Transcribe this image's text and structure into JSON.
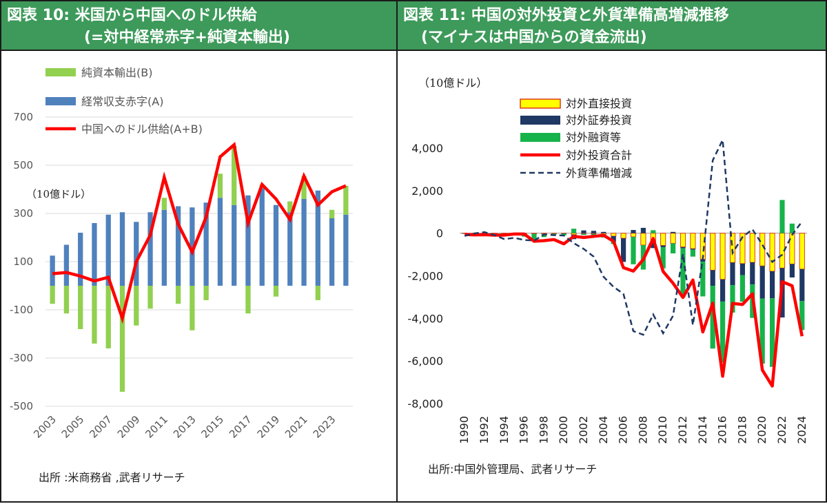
{
  "left": {
    "header": {
      "line1": "図表 10: 米国から中国へのドル供給",
      "line2": "(=対中経常赤字+純資本輸出)"
    },
    "source": "出所 :米商務省 ,武者リサーチ",
    "chart_data": {
      "type": "bar",
      "unit_label": "（10億ドル）",
      "ylim": [
        -500,
        700
      ],
      "yticks": [
        700,
        500,
        300,
        100,
        -100,
        -300,
        -500
      ],
      "ytick_labels": [
        "700",
        "500",
        "300",
        "100",
        "-100",
        "-300",
        "-500"
      ],
      "x": [
        2003,
        2004,
        2005,
        2006,
        2007,
        2008,
        2009,
        2010,
        2011,
        2012,
        2013,
        2014,
        2015,
        2016,
        2017,
        2018,
        2019,
        2020,
        2021,
        2022,
        2023,
        2024
      ],
      "xtick_labels": [
        "2003",
        "2005",
        "2007",
        "2009",
        "2011",
        "2013",
        "2015",
        "2017",
        "2019",
        "2021",
        "2023"
      ],
      "legend_position": "top-left",
      "colors": {
        "capital": "#92d050",
        "deficit": "#4f81bd",
        "supply": "#ff0000",
        "grid": "#d9d9d9"
      },
      "series": [
        {
          "name": "純資本輸出(B)",
          "type": "bar",
          "values": [
            -75,
            -115,
            -180,
            -240,
            -260,
            -440,
            -165,
            -95,
            50,
            -75,
            -185,
            -60,
            100,
            245,
            -115,
            15,
            -45,
            45,
            95,
            -60,
            35,
            120
          ]
        },
        {
          "name": "経常収支赤字(A)",
          "type": "bar",
          "values": [
            125,
            170,
            220,
            260,
            295,
            305,
            265,
            305,
            315,
            330,
            325,
            345,
            365,
            335,
            375,
            405,
            335,
            305,
            360,
            395,
            280,
            295
          ]
        },
        {
          "name": "中国へのドル供給(A+B)",
          "type": "line",
          "values": [
            50,
            55,
            40,
            20,
            35,
            -135,
            100,
            210,
            450,
            255,
            140,
            285,
            535,
            585,
            260,
            420,
            360,
            275,
            455,
            335,
            390,
            415
          ]
        }
      ]
    }
  },
  "right": {
    "header": {
      "line1": "図表 11: 中国の対外投資と外貨準備高増減推移",
      "line2": "(マイナスは中国からの資金流出)"
    },
    "source": "出所:中国外管理局、武者リサーチ",
    "chart_data": {
      "type": "bar",
      "unit_label": "（10億ドル）",
      "ylim": [
        -8000,
        4000
      ],
      "yticks": [
        4000,
        2000,
        0,
        -2000,
        -4000,
        -6000,
        -8000
      ],
      "ytick_labels": [
        "4,000",
        "2,000",
        "0",
        "-2,000",
        "-4,000",
        "-6,000",
        "-8,000"
      ],
      "x": [
        1990,
        1991,
        1992,
        1993,
        1994,
        1995,
        1996,
        1997,
        1998,
        1999,
        2000,
        2001,
        2002,
        2003,
        2004,
        2005,
        2006,
        2007,
        2008,
        2009,
        2010,
        2011,
        2012,
        2013,
        2014,
        2015,
        2016,
        2017,
        2018,
        2019,
        2020,
        2021,
        2022,
        2023,
        2024
      ],
      "xtick_labels": [
        "1990",
        "1992",
        "1994",
        "1996",
        "1998",
        "2000",
        "2002",
        "2004",
        "2006",
        "2008",
        "2010",
        "2012",
        "2014",
        "2016",
        "2018",
        "2020",
        "2022",
        "2024"
      ],
      "legend_position": "top-center",
      "colors": {
        "fdi_fill": "#ffff00",
        "fdi_edge": "#e0391f",
        "portfolio": "#1f3864",
        "loans": "#16b34a",
        "total": "#ff0000",
        "reserves": "#1f3864"
      },
      "series": [
        {
          "name": "対外直接投資",
          "type": "bar",
          "values": [
            -10,
            -10,
            -40,
            -40,
            -20,
            -20,
            -20,
            -25,
            -25,
            -20,
            -10,
            -70,
            -25,
            -30,
            -55,
            -140,
            -240,
            -170,
            -560,
            -440,
            -580,
            -480,
            -650,
            -730,
            -1230,
            -1740,
            -2170,
            -1380,
            -1430,
            -1370,
            -1540,
            -1790,
            -1640,
            -1450,
            -1690
          ]
        },
        {
          "name": "対外証券投資",
          "type": "bar",
          "values": [
            0,
            0,
            0,
            0,
            0,
            0,
            0,
            0,
            0,
            0,
            -10,
            -210,
            130,
            110,
            60,
            -260,
            -1110,
            150,
            250,
            -260,
            -80,
            60,
            -60,
            -50,
            -110,
            -730,
            -1040,
            -1060,
            -540,
            -1040,
            -1530,
            -1270,
            -2320,
            -630,
            -1500
          ]
        },
        {
          "name": "対外融資等",
          "type": "bar",
          "values": [
            -20,
            -20,
            -30,
            -30,
            -40,
            -20,
            -140,
            -270,
            -160,
            -50,
            -80,
            210,
            -60,
            -80,
            -150,
            -110,
            0,
            -1290,
            -1150,
            140,
            -990,
            -470,
            -2300,
            -320,
            -1630,
            -2950,
            -2870,
            -1290,
            -1250,
            -1570,
            -3060,
            -3220,
            1560,
            450,
            -1360
          ]
        },
        {
          "name": "対外投資合計",
          "type": "line",
          "values": [
            -60,
            -80,
            -70,
            -90,
            -90,
            -40,
            -40,
            -380,
            -350,
            -300,
            -500,
            -150,
            -200,
            -150,
            -100,
            -380,
            -1620,
            -1780,
            -1240,
            -250,
            -1800,
            -2350,
            -3020,
            -2200,
            -4640,
            -3290,
            -6720,
            -3300,
            -3350,
            -2850,
            -6430,
            -7180,
            -2280,
            -2470,
            -4840
          ]
        },
        {
          "name": "外貨準備増減",
          "type": "line",
          "style": "dashed",
          "values": [
            -130,
            -10,
            50,
            -90,
            -280,
            -220,
            -320,
            -350,
            -60,
            -90,
            -110,
            -470,
            -740,
            -1100,
            -2050,
            -2520,
            -2850,
            -4600,
            -4770,
            -3820,
            -4700,
            -3880,
            -970,
            -4320,
            -1180,
            3420,
            4380,
            -930,
            -180,
            180,
            -540,
            -1350,
            -1010,
            -80,
            550
          ]
        }
      ]
    }
  }
}
